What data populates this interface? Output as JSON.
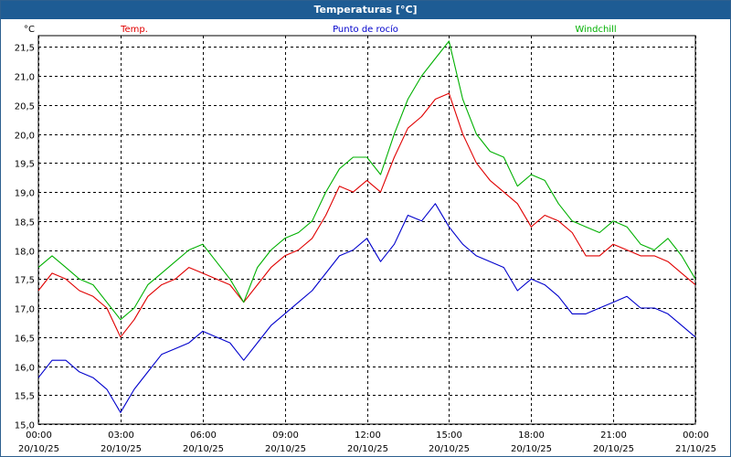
{
  "window": {
    "title": "Temperaturas [°C]"
  },
  "chart_data": {
    "type": "line",
    "title": "Temperaturas [°C]",
    "ylabel": "°C",
    "xlabel": "",
    "ylim": [
      15.0,
      21.6
    ],
    "y_ticks": [
      "15,0",
      "15,5",
      "16,0",
      "16,5",
      "17,0",
      "17,5",
      "18,0",
      "18,5",
      "19,0",
      "19,5",
      "20,0",
      "20,5",
      "21,0",
      "21,5"
    ],
    "x_ticks": [
      {
        "time": "00:00",
        "date": "20/10/25"
      },
      {
        "time": "03:00",
        "date": "20/10/25"
      },
      {
        "time": "06:00",
        "date": "20/10/25"
      },
      {
        "time": "09:00",
        "date": "20/10/25"
      },
      {
        "time": "12:00",
        "date": "20/10/25"
      },
      {
        "time": "15:00",
        "date": "20/10/25"
      },
      {
        "time": "18:00",
        "date": "20/10/25"
      },
      {
        "time": "21:00",
        "date": "20/10/25"
      },
      {
        "time": "00:00",
        "date": "21/10/25"
      }
    ],
    "grid": true,
    "legend_placement": "top",
    "x_hours": [
      0,
      0.5,
      1,
      1.5,
      2,
      2.5,
      3,
      3.5,
      4,
      4.5,
      5,
      5.5,
      6,
      6.5,
      7,
      7.5,
      8,
      8.5,
      9,
      9.5,
      10,
      10.5,
      11,
      11.5,
      12,
      12.5,
      13,
      13.5,
      14,
      14.5,
      15,
      15.5,
      16,
      16.5,
      17,
      17.5,
      18,
      18.5,
      19,
      19.5,
      20,
      20.5,
      21,
      21.5,
      22,
      22.5,
      23,
      23.5,
      24
    ],
    "series": [
      {
        "name": "Temp.",
        "color": "#e00000",
        "values": [
          17.3,
          17.6,
          17.5,
          17.3,
          17.2,
          17.0,
          16.5,
          16.8,
          17.2,
          17.4,
          17.5,
          17.7,
          17.6,
          17.5,
          17.4,
          17.1,
          17.4,
          17.7,
          17.9,
          18.0,
          18.2,
          18.6,
          19.1,
          19.0,
          19.2,
          19.0,
          19.6,
          20.1,
          20.3,
          20.6,
          20.7,
          20.0,
          19.5,
          19.2,
          19.0,
          18.8,
          18.4,
          18.6,
          18.5,
          18.3,
          17.9,
          17.9,
          18.1,
          18.0,
          17.9,
          17.9,
          17.8,
          17.6,
          17.4
        ]
      },
      {
        "name": "Punto de rocío",
        "color": "#0000cc",
        "values": [
          15.8,
          16.1,
          16.1,
          15.9,
          15.8,
          15.6,
          15.2,
          15.6,
          15.9,
          16.2,
          16.3,
          16.4,
          16.6,
          16.5,
          16.4,
          16.1,
          16.4,
          16.7,
          16.9,
          17.1,
          17.3,
          17.6,
          17.9,
          18.0,
          18.2,
          17.8,
          18.1,
          18.6,
          18.5,
          18.8,
          18.4,
          18.1,
          17.9,
          17.8,
          17.7,
          17.3,
          17.5,
          17.4,
          17.2,
          16.9,
          16.9,
          17.0,
          17.1,
          17.2,
          17.0,
          17.0,
          16.9,
          16.7,
          16.5
        ]
      },
      {
        "name": "Windchill",
        "color": "#00b000",
        "values": [
          17.7,
          17.9,
          17.7,
          17.5,
          17.4,
          17.1,
          16.8,
          17.0,
          17.4,
          17.6,
          17.8,
          18.0,
          18.1,
          17.8,
          17.5,
          17.1,
          17.7,
          18.0,
          18.2,
          18.3,
          18.5,
          19.0,
          19.4,
          19.6,
          19.6,
          19.3,
          20.0,
          20.6,
          21.0,
          21.3,
          21.6,
          20.6,
          20.0,
          19.7,
          19.6,
          19.1,
          19.3,
          19.2,
          18.8,
          18.5,
          18.4,
          18.3,
          18.5,
          18.4,
          18.1,
          18.0,
          18.2,
          17.9,
          17.5
        ]
      }
    ]
  }
}
